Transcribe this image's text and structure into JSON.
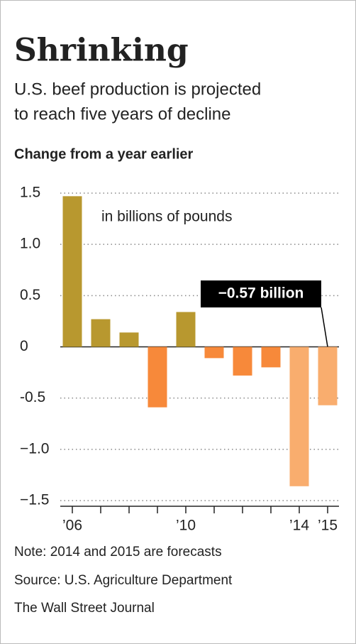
{
  "chart_data": {
    "type": "bar",
    "title": "Shrinking",
    "subtitle": [
      "U.S. beef production is projected",
      "to reach five years of decline"
    ],
    "y_label": "Change from a year earlier",
    "unit_note": "in billions of pounds",
    "callout": "−0.57 billion",
    "categories": [
      "’06",
      null,
      null,
      null,
      "’10",
      null,
      null,
      null,
      "’14",
      "’15"
    ],
    "values": [
      1.47,
      0.27,
      0.14,
      -0.59,
      0.34,
      -0.11,
      -0.28,
      -0.2,
      -1.36,
      -0.57
    ],
    "colors": [
      "#b8982f",
      "#b8982f",
      "#b8982f",
      "#f7893a",
      "#b8982f",
      "#f7893a",
      "#f7893a",
      "#f7893a",
      "#f9ad6e",
      "#f9ad6e"
    ],
    "ylim": [
      -1.5,
      1.5
    ],
    "yticks": [
      1.5,
      {
        "value": 1,
        "label": "1.0"
      },
      0.5,
      0,
      -0.5,
      {
        "value": -1,
        "label": "−1.0"
      },
      {
        "value": -1.5,
        "label": "−1.5"
      }
    ],
    "grid": true,
    "notes": [
      "Note: 2014 and 2015 are forecasts",
      "Source: U.S. Agriculture Department",
      "The Wall Street Journal"
    ]
  }
}
